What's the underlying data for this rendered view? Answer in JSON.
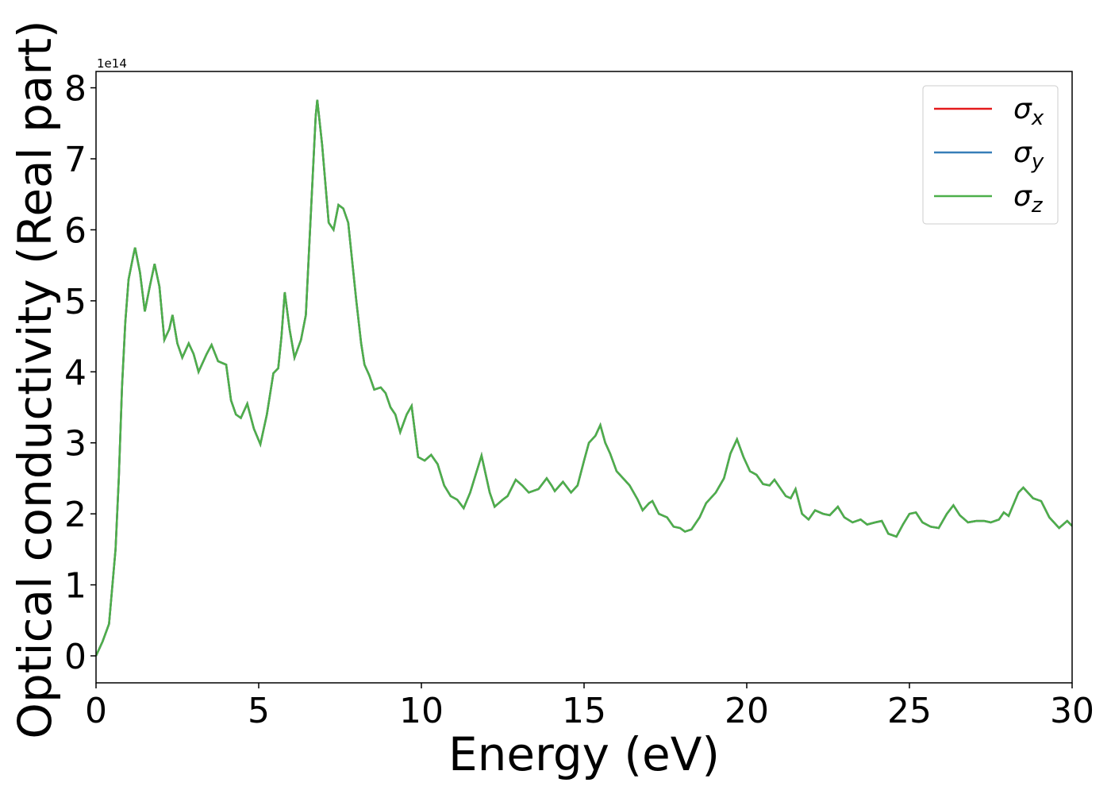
{
  "chart_data": {
    "type": "line",
    "xlabel": "Energy (eV)",
    "ylabel": "Optical conductivity (Real part)",
    "y_offset_label": "1e14",
    "xlim": [
      0,
      30
    ],
    "ylim": [
      -0.38,
      8.23
    ],
    "xticks": [
      0,
      5,
      10,
      15,
      20,
      25,
      30
    ],
    "yticks": [
      0,
      1,
      2,
      3,
      4,
      5,
      6,
      7,
      8
    ],
    "legend": "upper right",
    "x": [
      0,
      0.2,
      0.4,
      0.6,
      0.7,
      0.8,
      0.9,
      1.0,
      1.15,
      1.2,
      1.35,
      1.5,
      1.65,
      1.8,
      1.95,
      2.1,
      2.25,
      2.35,
      2.5,
      2.65,
      2.85,
      3.0,
      3.15,
      3.4,
      3.55,
      3.75,
      4.0,
      4.15,
      4.3,
      4.45,
      4.65,
      4.85,
      5.05,
      5.25,
      5.45,
      5.6,
      5.7,
      5.8,
      5.95,
      6.1,
      6.3,
      6.45,
      6.6,
      6.75,
      6.8,
      6.95,
      7.15,
      7.3,
      7.45,
      7.6,
      7.75,
      8.0,
      8.15,
      8.25,
      8.4,
      8.55,
      8.75,
      8.9,
      9.05,
      9.2,
      9.35,
      9.55,
      9.7,
      9.9,
      10.1,
      10.3,
      10.5,
      10.7,
      10.9,
      11.1,
      11.3,
      11.5,
      11.85,
      12.1,
      12.25,
      12.5,
      12.65,
      12.9,
      13.1,
      13.3,
      13.6,
      13.85,
      14.0,
      14.1,
      14.35,
      14.6,
      14.8,
      15.0,
      15.15,
      15.35,
      15.5,
      15.65,
      15.8,
      16.0,
      16.2,
      16.4,
      16.65,
      16.8,
      17.0,
      17.1,
      17.3,
      17.55,
      17.75,
      17.95,
      18.1,
      18.3,
      18.55,
      18.75,
      19.05,
      19.3,
      19.5,
      19.7,
      19.9,
      20.1,
      20.3,
      20.5,
      20.7,
      20.85,
      21.05,
      21.2,
      21.35,
      21.5,
      21.7,
      21.9,
      22.1,
      22.35,
      22.55,
      22.8,
      23.0,
      23.25,
      23.5,
      23.7,
      23.95,
      24.15,
      24.35,
      24.6,
      24.8,
      25.0,
      25.2,
      25.4,
      25.65,
      25.9,
      26.15,
      26.35,
      26.55,
      26.8,
      27.05,
      27.3,
      27.5,
      27.75,
      27.9,
      28.05,
      28.35,
      28.5,
      28.8,
      29.05,
      29.3,
      29.6,
      29.85,
      30
    ],
    "series": [
      {
        "name": "σx",
        "color": "#e41a1c",
        "values": [
          0,
          0.2,
          0.45,
          1.5,
          2.5,
          3.8,
          4.7,
          5.3,
          5.65,
          5.75,
          5.4,
          4.85,
          5.2,
          5.52,
          5.2,
          4.45,
          4.6,
          4.8,
          4.4,
          4.2,
          4.4,
          4.25,
          4.0,
          4.25,
          4.38,
          4.15,
          4.1,
          3.6,
          3.4,
          3.35,
          3.55,
          3.2,
          2.98,
          3.4,
          3.98,
          4.05,
          4.5,
          5.12,
          4.6,
          4.2,
          4.45,
          4.8,
          6.2,
          7.6,
          7.83,
          7.2,
          6.1,
          6.0,
          6.35,
          6.3,
          6.1,
          5.0,
          4.4,
          4.1,
          3.95,
          3.75,
          3.78,
          3.7,
          3.5,
          3.4,
          3.15,
          3.4,
          3.52,
          2.8,
          2.75,
          2.83,
          2.7,
          2.4,
          2.25,
          2.2,
          2.08,
          2.3,
          2.82,
          2.3,
          2.1,
          2.2,
          2.25,
          2.48,
          2.4,
          2.3,
          2.35,
          2.5,
          2.4,
          2.32,
          2.45,
          2.3,
          2.4,
          2.75,
          3.0,
          3.1,
          3.25,
          3.0,
          2.85,
          2.6,
          2.5,
          2.4,
          2.2,
          2.05,
          2.15,
          2.18,
          2.0,
          1.95,
          1.82,
          1.8,
          1.75,
          1.78,
          1.95,
          2.15,
          2.3,
          2.5,
          2.85,
          3.05,
          2.8,
          2.6,
          2.55,
          2.42,
          2.4,
          2.48,
          2.35,
          2.25,
          2.22,
          2.35,
          2.0,
          1.92,
          2.05,
          2.0,
          1.98,
          2.1,
          1.95,
          1.88,
          1.92,
          1.85,
          1.88,
          1.9,
          1.72,
          1.68,
          1.85,
          2.0,
          2.02,
          1.88,
          1.82,
          1.8,
          2.0,
          2.12,
          1.98,
          1.88,
          1.9,
          1.9,
          1.88,
          1.92,
          2.02,
          1.97,
          2.3,
          2.37,
          2.22,
          2.18,
          1.95,
          1.8,
          1.9,
          1.83
        ]
      },
      {
        "name": "σy",
        "color": "#377eb8",
        "values": [
          0,
          0.2,
          0.45,
          1.5,
          2.5,
          3.8,
          4.7,
          5.3,
          5.65,
          5.75,
          5.4,
          4.85,
          5.2,
          5.52,
          5.2,
          4.45,
          4.6,
          4.8,
          4.4,
          4.2,
          4.4,
          4.25,
          4.0,
          4.25,
          4.38,
          4.15,
          4.1,
          3.6,
          3.4,
          3.35,
          3.55,
          3.2,
          2.98,
          3.4,
          3.98,
          4.05,
          4.5,
          5.12,
          4.6,
          4.2,
          4.45,
          4.8,
          6.2,
          7.6,
          7.83,
          7.2,
          6.1,
          6.0,
          6.35,
          6.3,
          6.1,
          5.0,
          4.4,
          4.1,
          3.95,
          3.75,
          3.78,
          3.7,
          3.5,
          3.4,
          3.15,
          3.4,
          3.52,
          2.8,
          2.75,
          2.83,
          2.7,
          2.4,
          2.25,
          2.2,
          2.08,
          2.3,
          2.82,
          2.3,
          2.1,
          2.2,
          2.25,
          2.48,
          2.4,
          2.3,
          2.35,
          2.5,
          2.4,
          2.32,
          2.45,
          2.3,
          2.4,
          2.75,
          3.0,
          3.1,
          3.25,
          3.0,
          2.85,
          2.6,
          2.5,
          2.4,
          2.2,
          2.05,
          2.15,
          2.18,
          2.0,
          1.95,
          1.82,
          1.8,
          1.75,
          1.78,
          1.95,
          2.15,
          2.3,
          2.5,
          2.85,
          3.05,
          2.8,
          2.6,
          2.55,
          2.42,
          2.4,
          2.48,
          2.35,
          2.25,
          2.22,
          2.35,
          2.0,
          1.92,
          2.05,
          2.0,
          1.98,
          2.1,
          1.95,
          1.88,
          1.92,
          1.85,
          1.88,
          1.9,
          1.72,
          1.68,
          1.85,
          2.0,
          2.02,
          1.88,
          1.82,
          1.8,
          2.0,
          2.12,
          1.98,
          1.88,
          1.9,
          1.9,
          1.88,
          1.92,
          2.02,
          1.97,
          2.3,
          2.37,
          2.22,
          2.18,
          1.95,
          1.8,
          1.9,
          1.83
        ]
      },
      {
        "name": "σz",
        "color": "#4daf4a",
        "values": [
          0,
          0.2,
          0.45,
          1.5,
          2.5,
          3.8,
          4.7,
          5.3,
          5.65,
          5.75,
          5.4,
          4.85,
          5.2,
          5.52,
          5.2,
          4.45,
          4.6,
          4.8,
          4.4,
          4.2,
          4.4,
          4.25,
          4.0,
          4.25,
          4.38,
          4.15,
          4.1,
          3.6,
          3.4,
          3.35,
          3.55,
          3.2,
          2.98,
          3.4,
          3.98,
          4.05,
          4.5,
          5.12,
          4.6,
          4.2,
          4.45,
          4.8,
          6.2,
          7.6,
          7.83,
          7.2,
          6.1,
          6.0,
          6.35,
          6.3,
          6.1,
          5.0,
          4.4,
          4.1,
          3.95,
          3.75,
          3.78,
          3.7,
          3.5,
          3.4,
          3.15,
          3.4,
          3.52,
          2.8,
          2.75,
          2.83,
          2.7,
          2.4,
          2.25,
          2.2,
          2.08,
          2.3,
          2.82,
          2.3,
          2.1,
          2.2,
          2.25,
          2.48,
          2.4,
          2.3,
          2.35,
          2.5,
          2.4,
          2.32,
          2.45,
          2.3,
          2.4,
          2.75,
          3.0,
          3.1,
          3.25,
          3.0,
          2.85,
          2.6,
          2.5,
          2.4,
          2.2,
          2.05,
          2.15,
          2.18,
          2.0,
          1.95,
          1.82,
          1.8,
          1.75,
          1.78,
          1.95,
          2.15,
          2.3,
          2.5,
          2.85,
          3.05,
          2.8,
          2.6,
          2.55,
          2.42,
          2.4,
          2.48,
          2.35,
          2.25,
          2.22,
          2.35,
          2.0,
          1.92,
          2.05,
          2.0,
          1.98,
          2.1,
          1.95,
          1.88,
          1.92,
          1.85,
          1.88,
          1.9,
          1.72,
          1.68,
          1.85,
          2.0,
          2.02,
          1.88,
          1.82,
          1.8,
          2.0,
          2.12,
          1.98,
          1.88,
          1.9,
          1.9,
          1.88,
          1.92,
          2.02,
          1.97,
          2.3,
          2.37,
          2.22,
          2.18,
          1.95,
          1.8,
          1.9,
          1.83
        ]
      }
    ]
  }
}
